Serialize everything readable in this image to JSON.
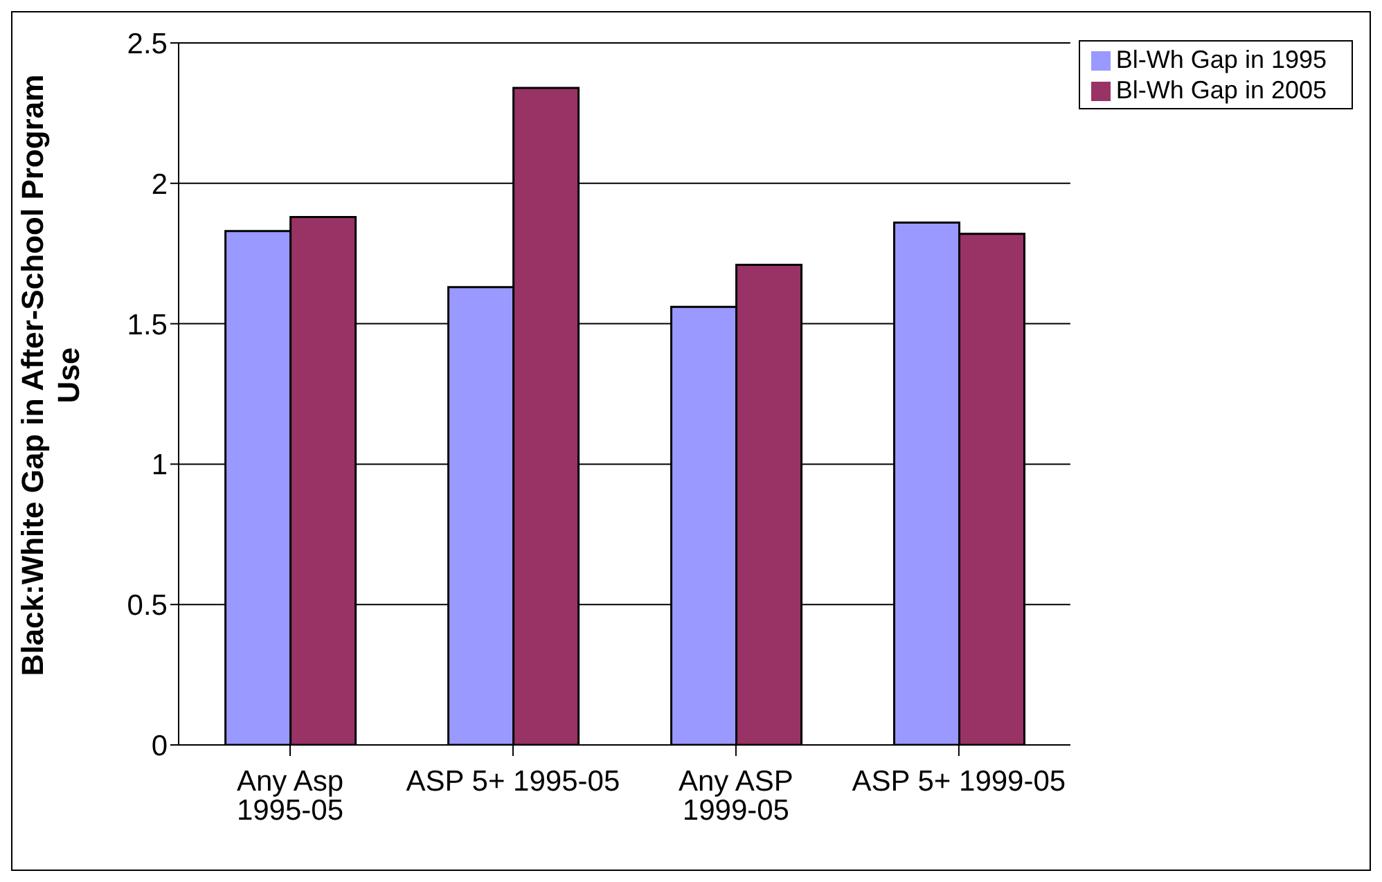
{
  "chart_data": {
    "type": "bar",
    "ylabel": "Black:White Gap in After-School Program Use",
    "categories": [
      "Any Asp 1995-05",
      "ASP 5+ 1995-05",
      "Any ASP 1999-05",
      "ASP 5+ 1999-05"
    ],
    "series": [
      {
        "name": "Bl-Wh Gap in 1995",
        "color": "#9999ff",
        "values": [
          1.83,
          1.63,
          1.56,
          1.86
        ]
      },
      {
        "name": "Bl-Wh Gap in 2005",
        "color": "#993366",
        "values": [
          1.88,
          2.34,
          1.71,
          1.82
        ]
      }
    ],
    "ylim": [
      0,
      2.5
    ],
    "yticks": [
      0,
      0.5,
      1,
      1.5,
      2,
      2.5
    ],
    "grid": "y",
    "legend": "top right"
  }
}
